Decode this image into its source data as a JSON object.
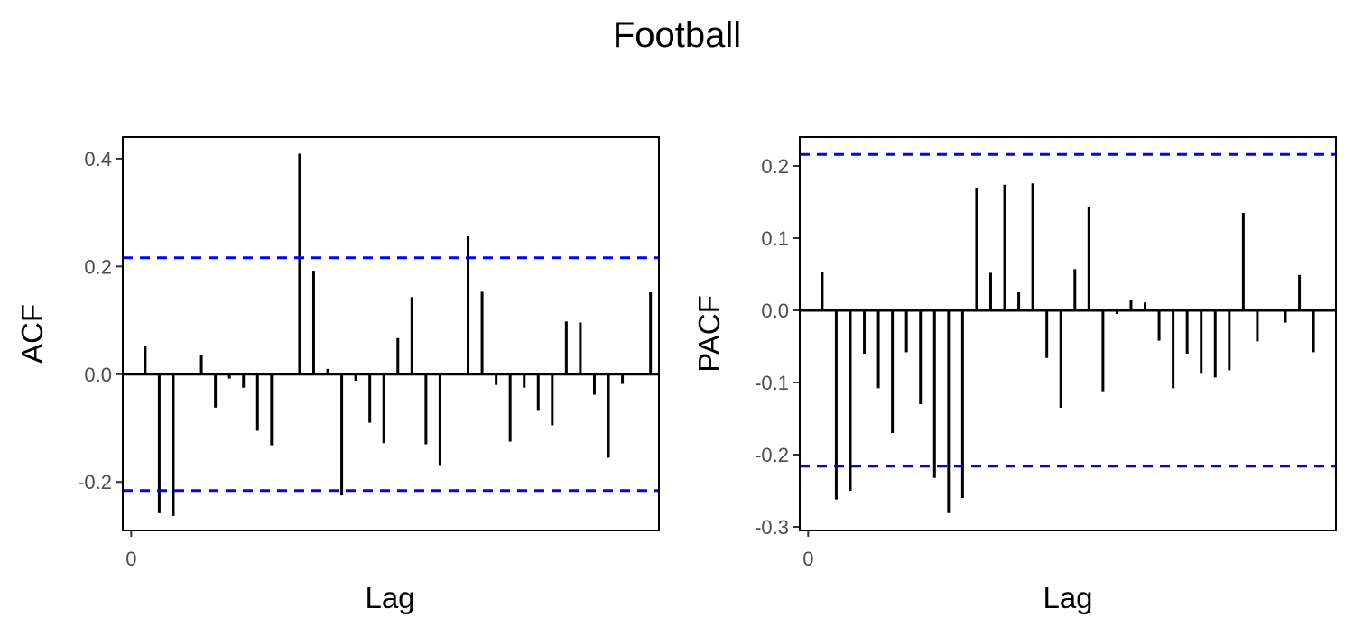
{
  "title": "Football",
  "chart_data": [
    {
      "type": "bar",
      "ylabel": "ACF",
      "xlabel": "Lag",
      "ylim": [
        -0.29,
        0.44
      ],
      "yticks": [
        {
          "value": -0.2,
          "label": "-0.2"
        },
        {
          "value": 0.0,
          "label": "0.0"
        },
        {
          "value": 0.2,
          "label": "0.2"
        },
        {
          "value": 0.4,
          "label": "0.4"
        }
      ],
      "xticks": [
        {
          "value": 0,
          "label": "0"
        }
      ],
      "xlim": [
        -0.6,
        37.6
      ],
      "ci": 0.216,
      "ci_color": "#0000ff",
      "bar_color": "#000000",
      "lags": [
        1,
        2,
        3,
        4,
        5,
        6,
        7,
        8,
        9,
        10,
        11,
        12,
        13,
        14,
        15,
        16,
        17,
        18,
        19,
        20,
        21,
        22,
        23,
        24,
        25,
        26,
        27,
        28,
        29,
        30,
        31,
        32,
        33,
        34,
        35,
        36,
        37
      ],
      "values": [
        0.053,
        -0.258,
        -0.263,
        0.0,
        0.035,
        -0.062,
        -0.008,
        -0.025,
        -0.105,
        -0.132,
        0.002,
        0.409,
        0.192,
        0.01,
        -0.225,
        -0.012,
        -0.09,
        -0.128,
        0.067,
        0.143,
        -0.13,
        -0.17,
        0.0,
        0.256,
        0.153,
        -0.02,
        -0.125,
        -0.025,
        -0.068,
        -0.095,
        0.098,
        0.096,
        -0.038,
        -0.155,
        -0.018,
        0.0,
        0.152
      ]
    },
    {
      "type": "bar",
      "ylabel": "PACF",
      "xlabel": "Lag",
      "ylim": [
        -0.305,
        0.24
      ],
      "yticks": [
        {
          "value": -0.3,
          "label": "-0.3"
        },
        {
          "value": -0.2,
          "label": "-0.2"
        },
        {
          "value": -0.1,
          "label": "-0.1"
        },
        {
          "value": 0.0,
          "label": "0.0"
        },
        {
          "value": 0.1,
          "label": "0.1"
        },
        {
          "value": 0.2,
          "label": "0.2"
        }
      ],
      "xticks": [
        {
          "value": 0,
          "label": "0"
        }
      ],
      "xlim": [
        -0.6,
        37.6
      ],
      "ci": 0.216,
      "ci_color": "#0000ff",
      "bar_color": "#000000",
      "lags": [
        1,
        2,
        3,
        4,
        5,
        6,
        7,
        8,
        9,
        10,
        11,
        12,
        13,
        14,
        15,
        16,
        17,
        18,
        19,
        20,
        21,
        22,
        23,
        24,
        25,
        26,
        27,
        28,
        29,
        30,
        31,
        32,
        33,
        34,
        35,
        36,
        37
      ],
      "values": [
        0.053,
        -0.262,
        -0.25,
        -0.06,
        -0.108,
        -0.17,
        -0.058,
        -0.13,
        -0.232,
        -0.281,
        -0.26,
        0.17,
        0.052,
        0.174,
        0.025,
        0.176,
        -0.066,
        -0.135,
        0.057,
        0.143,
        -0.112,
        -0.005,
        0.014,
        0.011,
        -0.042,
        -0.108,
        -0.06,
        -0.088,
        -0.093,
        -0.083,
        0.135,
        -0.043,
        0.0,
        -0.017,
        0.049,
        -0.058,
        0.0
      ]
    }
  ]
}
